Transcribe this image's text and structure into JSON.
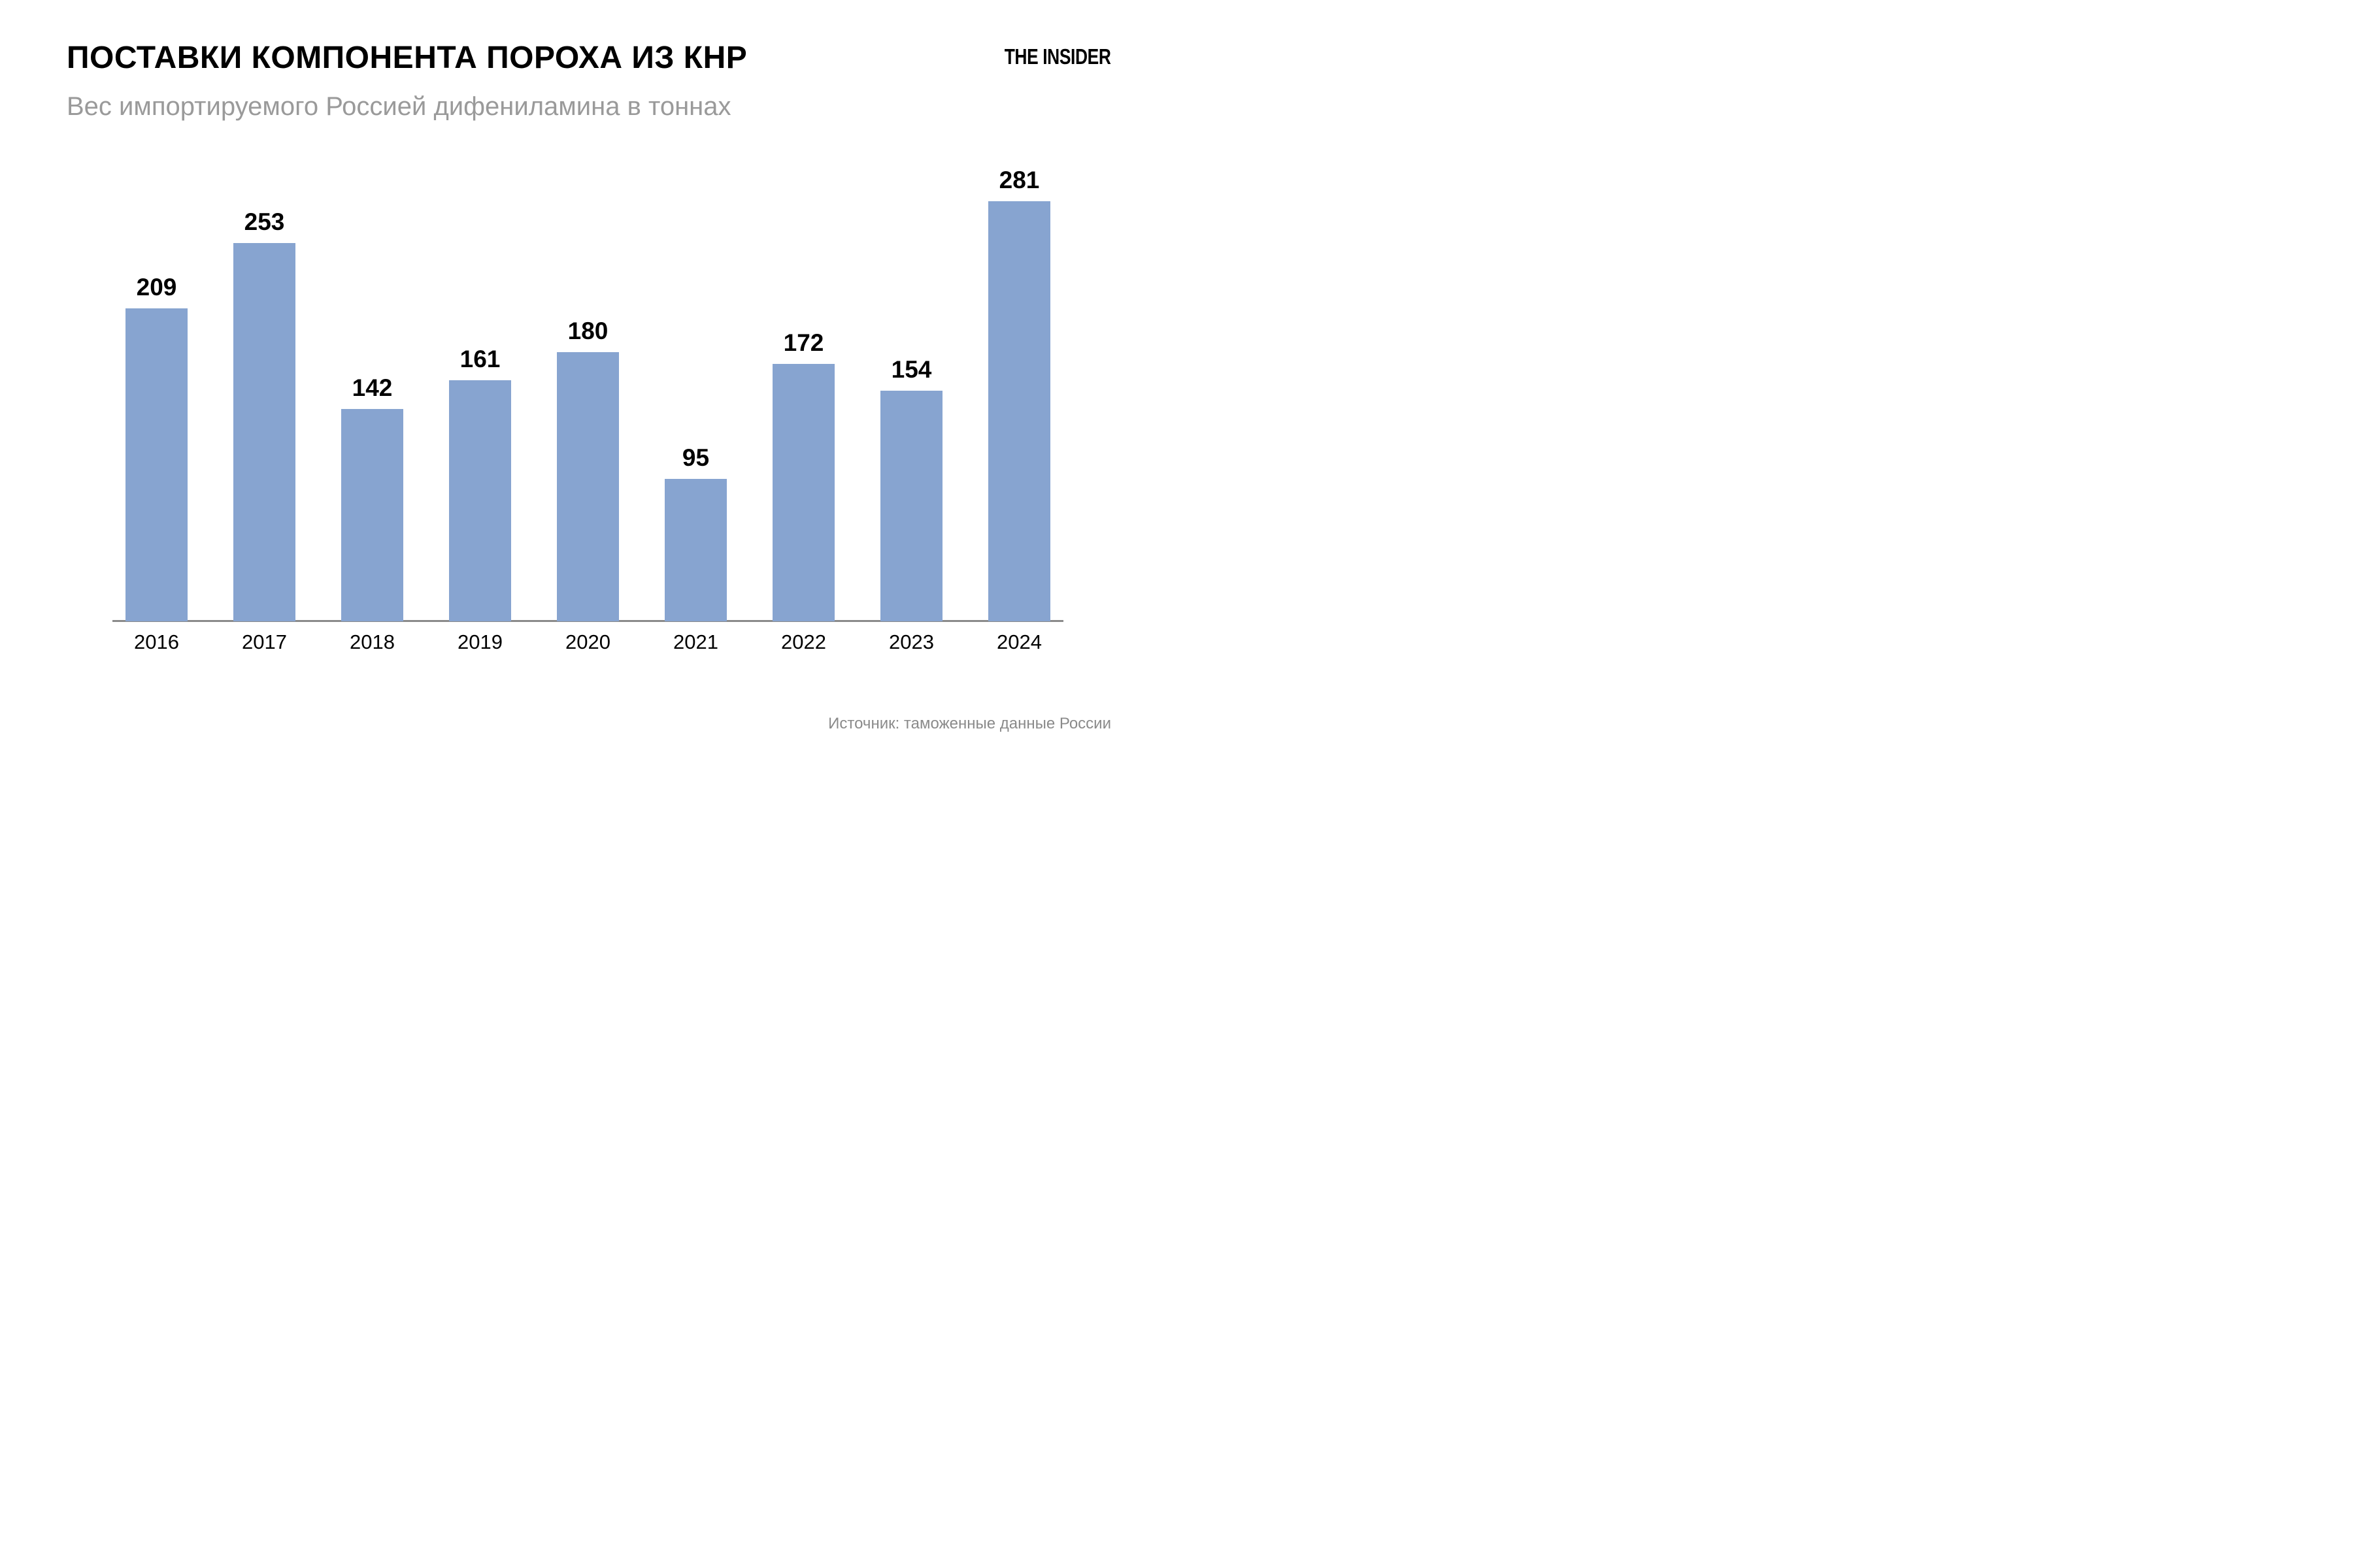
{
  "header": {
    "title": "ПОСТАВКИ КОМПОНЕНТА ПОРОХА ИЗ КНР",
    "subtitle": "Вес импортируемого Россией дифениламина в тоннах",
    "logo": "THE INSIDER"
  },
  "chart_data": {
    "type": "bar",
    "title": "ПОСТАВКИ КОМПОНЕНТА ПОРОХА ИЗ КНР",
    "subtitle": "Вес импортируемого Россией дифениламина в тоннах",
    "categories": [
      "2016",
      "2017",
      "2018",
      "2019",
      "2020",
      "2021",
      "2022",
      "2023",
      "2024"
    ],
    "values": [
      209,
      253,
      142,
      161,
      180,
      95,
      172,
      154,
      281
    ],
    "value_labels_position": "above-bars",
    "unit": "тонны",
    "xlabel": "",
    "ylabel": "",
    "ylim": [
      0,
      300
    ],
    "grid": false,
    "legend": "none",
    "bar_color": "#87a4d0",
    "axis_color": "#8a8a8a"
  },
  "footer": {
    "source": "Источник: таможенные данные России"
  }
}
